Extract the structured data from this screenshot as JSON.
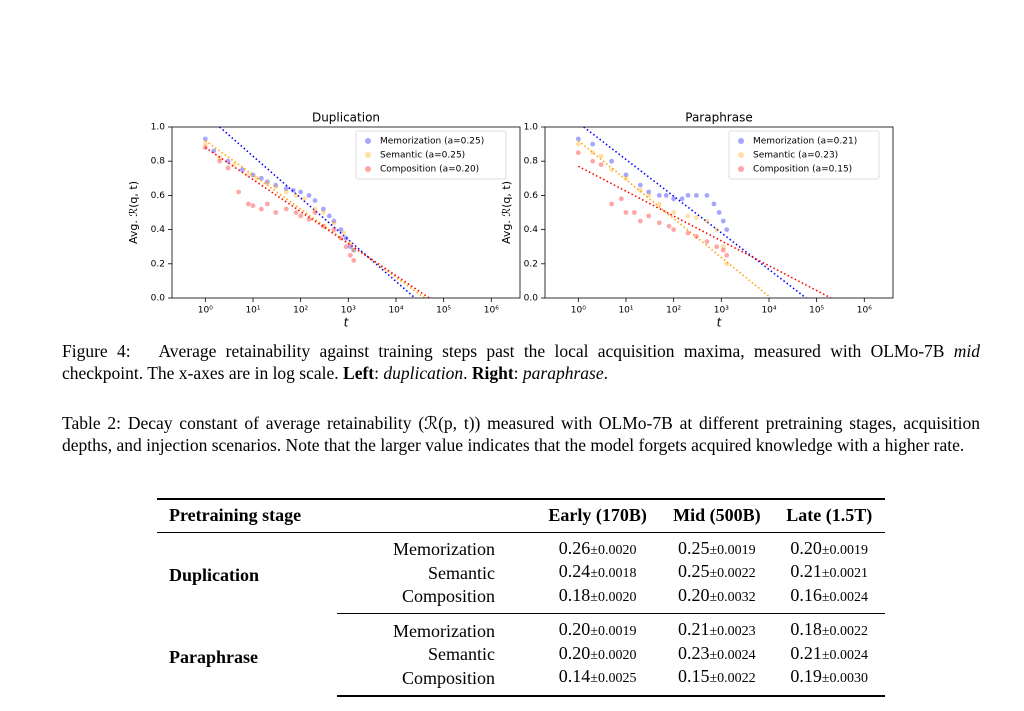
{
  "chart_data": [
    {
      "type": "scatter",
      "title": "Duplication",
      "xlabel": "t",
      "ylabel": "Avg. ℛ(q, t)",
      "log_x": true,
      "legend": "upper right",
      "xlim": [
        0.2,
        4000000
      ],
      "xticks": [
        {
          "value": 1,
          "label": "10⁰"
        },
        {
          "value": 10,
          "label": "10¹"
        },
        {
          "value": 100,
          "label": "10²"
        },
        {
          "value": 1000,
          "label": "10³"
        },
        {
          "value": 10000,
          "label": "10⁴"
        },
        {
          "value": 100000,
          "label": "10⁵"
        },
        {
          "value": 1000000,
          "label": "10⁶"
        }
      ],
      "ylim": [
        0,
        1
      ],
      "yticks": [
        {
          "value": 0,
          "label": "0.0"
        },
        0.2,
        0.4,
        0.6,
        0.8,
        {
          "value": 1,
          "label": "1.0"
        }
      ],
      "series": [
        {
          "name": "Memorization (a=0.25)",
          "color": "blue",
          "x": [
            1,
            1.5,
            3,
            6,
            10,
            15,
            20,
            30,
            50,
            70,
            100,
            150,
            200,
            300,
            400,
            500,
            700,
            900,
            1100,
            1300
          ],
          "values": [
            0.93,
            0.86,
            0.8,
            0.75,
            0.72,
            0.7,
            0.68,
            0.66,
            0.64,
            0.63,
            0.62,
            0.6,
            0.57,
            0.52,
            0.48,
            0.45,
            0.4,
            0.35,
            0.3,
            0.28
          ],
          "fit": {
            "x": [
              2,
              25000
            ],
            "values": [
              1,
              0
            ]
          }
        },
        {
          "name": "Semantic (a=0.25)",
          "color": "orange",
          "x": [
            1,
            2,
            4,
            8,
            12,
            20,
            30,
            50,
            80,
            120,
            200,
            300,
            500,
            800,
            1100,
            1300
          ],
          "values": [
            0.9,
            0.82,
            0.78,
            0.72,
            0.7,
            0.67,
            0.65,
            0.62,
            0.6,
            0.58,
            0.52,
            0.5,
            0.44,
            0.38,
            0.32,
            0.28
          ],
          "fit": {
            "x": [
              1,
              40000
            ],
            "values": [
              0.92,
              0
            ]
          }
        },
        {
          "name": "Composition (a=0.20)",
          "color": "red",
          "x": [
            1,
            2,
            3,
            5,
            8,
            10,
            15,
            20,
            30,
            50,
            80,
            100,
            150,
            200,
            300,
            500,
            700,
            900,
            1100,
            1300
          ],
          "values": [
            0.88,
            0.8,
            0.76,
            0.62,
            0.55,
            0.54,
            0.52,
            0.55,
            0.5,
            0.52,
            0.5,
            0.48,
            0.46,
            0.5,
            0.42,
            0.4,
            0.35,
            0.3,
            0.25,
            0.22
          ],
          "fit": {
            "x": [
              1,
              50000
            ],
            "values": [
              0.88,
              0
            ]
          }
        }
      ]
    },
    {
      "type": "scatter",
      "title": "Paraphrase",
      "xlabel": "t",
      "ylabel": "Avg. ℛ(q, t)",
      "log_x": true,
      "legend": "upper right",
      "xlim": [
        0.2,
        4000000
      ],
      "xticks": [
        {
          "value": 1,
          "label": "10⁰"
        },
        {
          "value": 10,
          "label": "10¹"
        },
        {
          "value": 100,
          "label": "10²"
        },
        {
          "value": 1000,
          "label": "10³"
        },
        {
          "value": 10000,
          "label": "10⁴"
        },
        {
          "value": 100000,
          "label": "10⁵"
        },
        {
          "value": 1000000,
          "label": "10⁶"
        }
      ],
      "ylim": [
        0,
        1
      ],
      "yticks": [
        {
          "value": 0,
          "label": "0.0"
        },
        0.2,
        0.4,
        0.6,
        0.8,
        {
          "value": 1,
          "label": "1.0"
        }
      ],
      "series": [
        {
          "name": "Memorization (a=0.21)",
          "color": "blue",
          "x": [
            1,
            2,
            5,
            10,
            20,
            30,
            50,
            70,
            100,
            150,
            200,
            300,
            500,
            700,
            900,
            1100,
            1300
          ],
          "values": [
            0.93,
            0.9,
            0.8,
            0.72,
            0.66,
            0.62,
            0.6,
            0.6,
            0.58,
            0.58,
            0.6,
            0.6,
            0.6,
            0.55,
            0.5,
            0.45,
            0.4
          ],
          "fit": {
            "x": [
              1.3,
              60000
            ],
            "values": [
              1,
              0
            ]
          }
        },
        {
          "name": "Semantic (a=0.23)",
          "color": "orange",
          "x": [
            1,
            2,
            3,
            5,
            10,
            20,
            30,
            50,
            100,
            200,
            300,
            500,
            800,
            1100,
            1300
          ],
          "values": [
            0.9,
            0.85,
            0.83,
            0.75,
            0.7,
            0.63,
            0.6,
            0.55,
            0.5,
            0.48,
            0.47,
            0.45,
            0.4,
            0.3,
            0.2
          ],
          "fit": {
            "x": [
              1,
              11000
            ],
            "values": [
              0.92,
              0
            ]
          }
        },
        {
          "name": "Composition (a=0.15)",
          "color": "red",
          "x": [
            1,
            2,
            3,
            5,
            8,
            10,
            15,
            20,
            30,
            50,
            80,
            100,
            200,
            300,
            500,
            800,
            1100,
            1300
          ],
          "values": [
            0.85,
            0.8,
            0.78,
            0.55,
            0.58,
            0.5,
            0.5,
            0.45,
            0.48,
            0.44,
            0.42,
            0.4,
            0.38,
            0.36,
            0.33,
            0.3,
            0.28,
            0.25
          ],
          "fit": {
            "x": [
              1,
              200000
            ],
            "values": [
              0.77,
              0
            ]
          }
        }
      ]
    }
  ],
  "figure_caption": {
    "label": "Figure 4:",
    "parts": [
      "Average retainability against training steps past the local acquisition maxima, measured with OLMo-7B ",
      "mid",
      " checkpoint. The x-axes are in log scale. ",
      "Left",
      ": ",
      "duplication",
      ". ",
      "Right",
      ": ",
      "paraphrase",
      "."
    ]
  },
  "table_caption": {
    "label": "Table 2:",
    "text": "Decay constant of average retainability (ℛ(p, t)) measured with OLMo-7B at different pretraining stages, acquisition depths, and injection scenarios. Note that the larger value indicates that the model forgets acquired knowledge with a higher rate."
  },
  "table": {
    "header": [
      "Pretraining stage",
      "Early (170B)",
      "Mid (500B)",
      "Late (1.5T)"
    ],
    "groups": [
      {
        "name": "Duplication",
        "rows": [
          {
            "scenario": "Memorization",
            "cells": [
              [
                "0.26",
                "±0.0020"
              ],
              [
                "0.25",
                "±0.0019"
              ],
              [
                "0.20",
                "±0.0019"
              ]
            ]
          },
          {
            "scenario": "Semantic",
            "cells": [
              [
                "0.24",
                "±0.0018"
              ],
              [
                "0.25",
                "±0.0022"
              ],
              [
                "0.21",
                "±0.0021"
              ]
            ]
          },
          {
            "scenario": "Composition",
            "cells": [
              [
                "0.18",
                "±0.0020"
              ],
              [
                "0.20",
                "±0.0032"
              ],
              [
                "0.16",
                "±0.0024"
              ]
            ]
          }
        ]
      },
      {
        "name": "Paraphrase",
        "rows": [
          {
            "scenario": "Memorization",
            "cells": [
              [
                "0.20",
                "±0.0019"
              ],
              [
                "0.21",
                "±0.0023"
              ],
              [
                "0.18",
                "±0.0022"
              ]
            ]
          },
          {
            "scenario": "Semantic",
            "cells": [
              [
                "0.20",
                "±0.0020"
              ],
              [
                "0.23",
                "±0.0024"
              ],
              [
                "0.21",
                "±0.0024"
              ]
            ]
          },
          {
            "scenario": "Composition",
            "cells": [
              [
                "0.14",
                "±0.0025"
              ],
              [
                "0.15",
                "±0.0022"
              ],
              [
                "0.19",
                "±0.0030"
              ]
            ]
          }
        ]
      }
    ]
  }
}
